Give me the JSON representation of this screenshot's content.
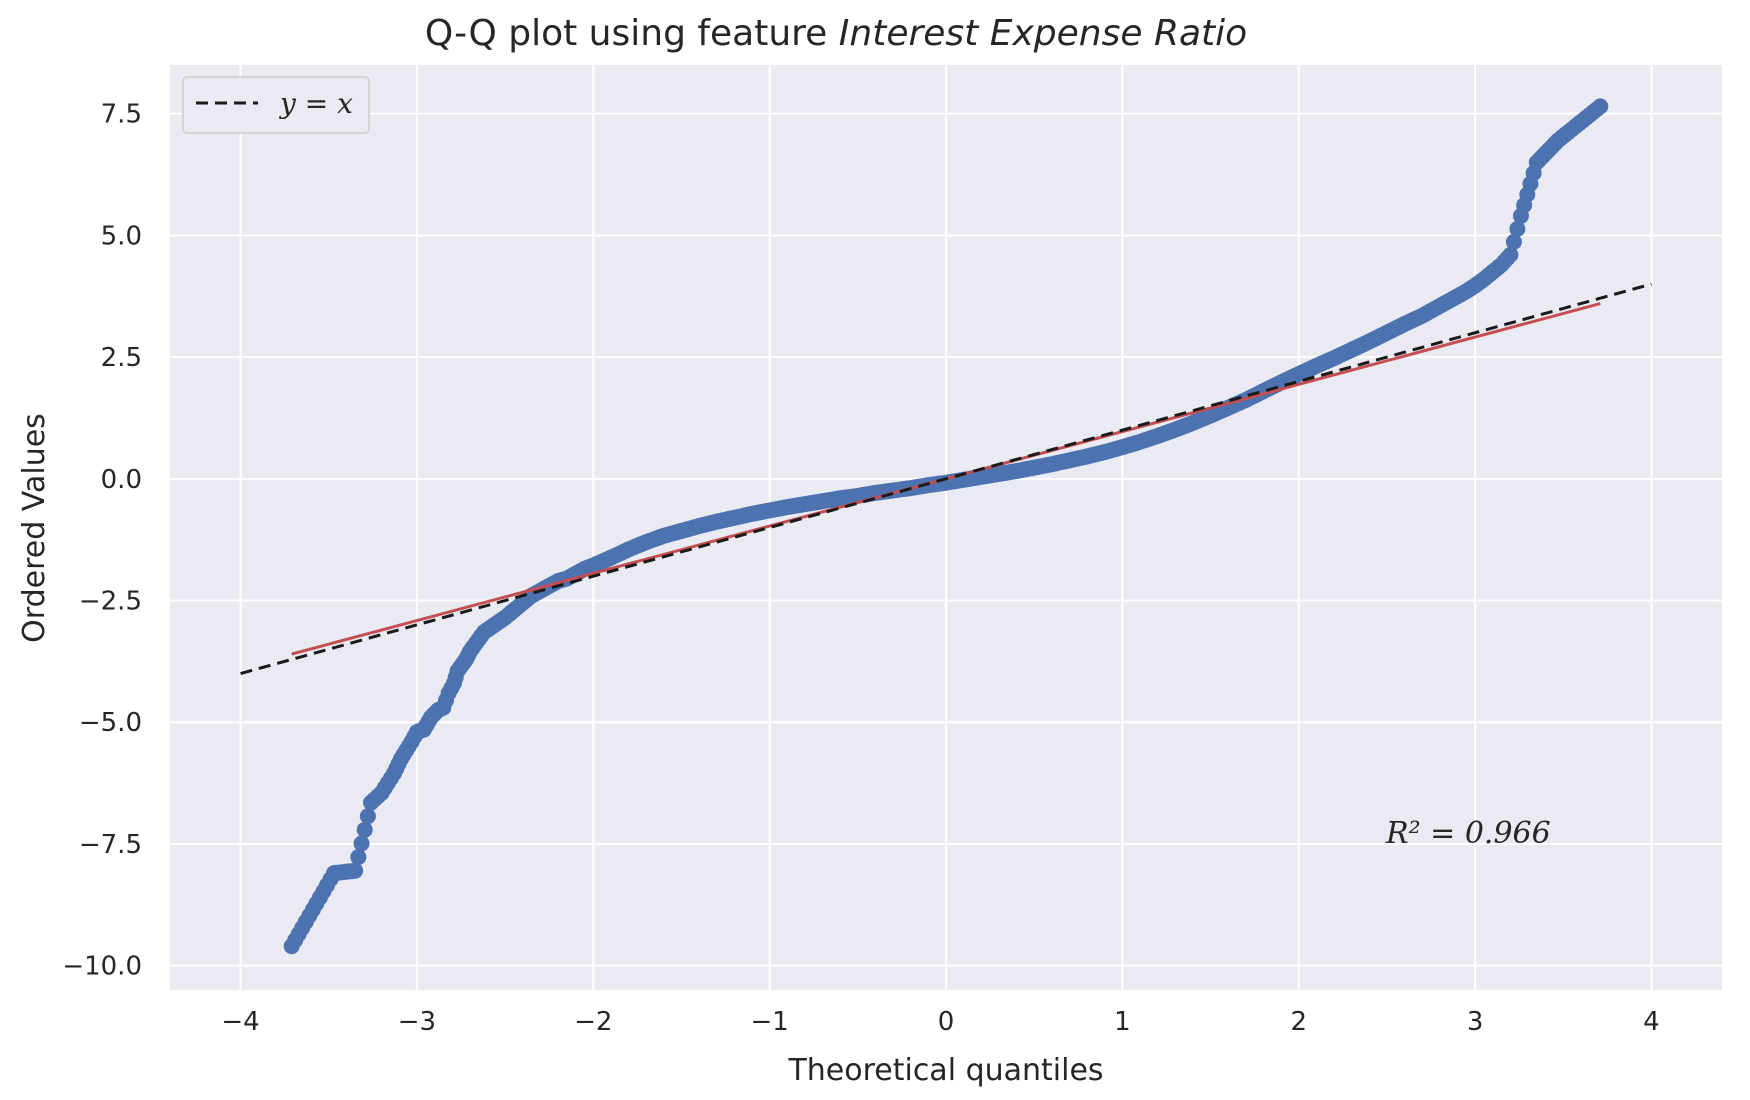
{
  "chart_data": {
    "type": "scatter",
    "title_prefix": "Q-Q plot using feature ",
    "title_feature": "Interest Expense Ratio",
    "xlabel": "Theoretical quantiles",
    "ylabel": "Ordered Values",
    "xlim": [
      -4.4,
      4.4
    ],
    "ylim": [
      -10.5,
      8.5
    ],
    "xticks": [
      -4,
      -3,
      -2,
      -1,
      0,
      1,
      2,
      3,
      4
    ],
    "xtick_labels": [
      "−4",
      "−3",
      "−2",
      "−1",
      "0",
      "1",
      "2",
      "3",
      "4"
    ],
    "yticks": [
      7.5,
      5.0,
      2.5,
      0.0,
      -2.5,
      -5.0,
      -7.5,
      -10.0
    ],
    "ytick_labels": [
      "7.5",
      "5.0",
      "2.5",
      "0.0",
      "−2.5",
      "−5.0",
      "−7.5",
      "−10.0"
    ],
    "grid": true,
    "legend": {
      "position": "top-left",
      "label": "y = x"
    },
    "annotation": "R² = 0.966",
    "colors": {
      "background": "#eaeaf2",
      "grid": "#ffffff",
      "points": "#4c72b0",
      "fit_line": "#c44e52",
      "reference_line": "#1a1a1a"
    },
    "reference_line": {
      "name": "y = x",
      "x": [
        -4,
        4
      ],
      "y": [
        -4,
        4
      ]
    },
    "fit_line": {
      "x": [
        -3.71,
        3.71
      ],
      "y": [
        -3.6,
        3.6
      ]
    },
    "series": [
      {
        "x": [
          -3.71,
          -3.47,
          -3.35,
          -3.26,
          -3.2,
          -3.13,
          -3.09,
          -3.03,
          -3.0,
          -2.96,
          -2.92,
          -2.88,
          -2.85,
          -2.82,
          -2.79,
          -2.77,
          -2.74,
          -2.72,
          -2.7,
          -2.68,
          -2.65,
          -2.62,
          -2.58,
          -2.54,
          -2.5,
          -2.45,
          -2.4,
          -2.35,
          -2.3,
          -2.25,
          -2.2,
          -2.15,
          -2.1,
          -2.05,
          -2.0,
          -1.9,
          -1.8,
          -1.7,
          -1.6,
          -1.5,
          -1.4,
          -1.3,
          -1.2,
          -1.1,
          -1.0,
          -0.9,
          -0.8,
          -0.7,
          -0.6,
          -0.5,
          -0.4,
          -0.3,
          -0.2,
          -0.1,
          0.0,
          0.1,
          0.2,
          0.3,
          0.4,
          0.5,
          0.6,
          0.7,
          0.8,
          0.9,
          1.0,
          1.1,
          1.2,
          1.3,
          1.4,
          1.5,
          1.6,
          1.7,
          1.8,
          1.9,
          2.0,
          2.1,
          2.2,
          2.3,
          2.4,
          2.5,
          2.6,
          2.7,
          2.75,
          2.8,
          2.85,
          2.9,
          2.95,
          3.0,
          3.05,
          3.1,
          3.15,
          3.2,
          3.26,
          3.35,
          3.47,
          3.71
        ],
        "y": [
          -9.6,
          -8.1,
          -8.05,
          -6.65,
          -6.45,
          -6.05,
          -5.75,
          -5.4,
          -5.2,
          -5.15,
          -4.9,
          -4.75,
          -4.7,
          -4.4,
          -4.2,
          -3.95,
          -3.8,
          -3.7,
          -3.55,
          -3.45,
          -3.3,
          -3.15,
          -3.05,
          -2.95,
          -2.85,
          -2.7,
          -2.55,
          -2.4,
          -2.3,
          -2.2,
          -2.1,
          -2.05,
          -1.95,
          -1.85,
          -1.78,
          -1.62,
          -1.45,
          -1.3,
          -1.17,
          -1.07,
          -0.97,
          -0.88,
          -0.8,
          -0.72,
          -0.65,
          -0.58,
          -0.52,
          -0.46,
          -0.4,
          -0.35,
          -0.29,
          -0.24,
          -0.19,
          -0.13,
          -0.08,
          -0.02,
          0.04,
          0.1,
          0.16,
          0.23,
          0.3,
          0.38,
          0.46,
          0.55,
          0.65,
          0.76,
          0.88,
          1.01,
          1.15,
          1.3,
          1.46,
          1.62,
          1.8,
          1.98,
          2.15,
          2.32,
          2.48,
          2.65,
          2.82,
          3.0,
          3.18,
          3.35,
          3.45,
          3.55,
          3.65,
          3.75,
          3.85,
          3.97,
          4.1,
          4.25,
          4.4,
          4.6,
          5.4,
          6.5,
          6.95,
          7.65
        ]
      }
    ]
  }
}
